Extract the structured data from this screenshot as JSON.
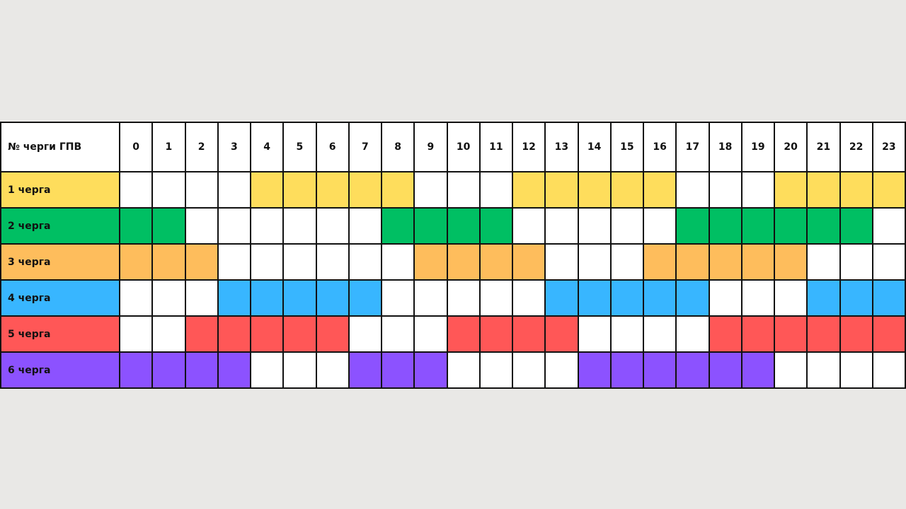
{
  "chart_data": {
    "type": "table",
    "header_label": "№ черги ГПВ",
    "hours": [
      "0",
      "1",
      "2",
      "3",
      "4",
      "5",
      "6",
      "7",
      "8",
      "9",
      "10",
      "11",
      "12",
      "13",
      "14",
      "15",
      "16",
      "17",
      "18",
      "19",
      "20",
      "21",
      "22",
      "23"
    ],
    "queues": [
      {
        "label": "1 черга",
        "color": "#fedd5c",
        "active": [
          0,
          0,
          0,
          0,
          1,
          1,
          1,
          1,
          1,
          0,
          0,
          0,
          1,
          1,
          1,
          1,
          1,
          0,
          0,
          0,
          1,
          1,
          1,
          1
        ]
      },
      {
        "label": "2 черга",
        "color": "#00bf63",
        "active": [
          1,
          1,
          0,
          0,
          0,
          0,
          0,
          0,
          1,
          1,
          1,
          1,
          0,
          0,
          0,
          0,
          0,
          1,
          1,
          1,
          1,
          1,
          1,
          0
        ]
      },
      {
        "label": "3 черга",
        "color": "#febd5c",
        "active": [
          1,
          1,
          1,
          0,
          0,
          0,
          0,
          0,
          0,
          1,
          1,
          1,
          1,
          0,
          0,
          0,
          1,
          1,
          1,
          1,
          1,
          0,
          0,
          0
        ]
      },
      {
        "label": "4 черга",
        "color": "#38b6ff",
        "active": [
          0,
          0,
          0,
          1,
          1,
          1,
          1,
          1,
          0,
          0,
          0,
          0,
          0,
          1,
          1,
          1,
          1,
          1,
          0,
          0,
          0,
          1,
          1,
          1
        ]
      },
      {
        "label": "5 черга",
        "color": "#ff5757",
        "active": [
          0,
          0,
          1,
          1,
          1,
          1,
          1,
          0,
          0,
          0,
          1,
          1,
          1,
          1,
          0,
          0,
          0,
          0,
          1,
          1,
          1,
          1,
          1,
          1
        ]
      },
      {
        "label": "6 черга",
        "color": "#8c52ff",
        "active": [
          1,
          1,
          1,
          1,
          0,
          0,
          0,
          1,
          1,
          1,
          0,
          0,
          0,
          0,
          1,
          1,
          1,
          1,
          1,
          1,
          0,
          0,
          0,
          0
        ]
      }
    ]
  }
}
